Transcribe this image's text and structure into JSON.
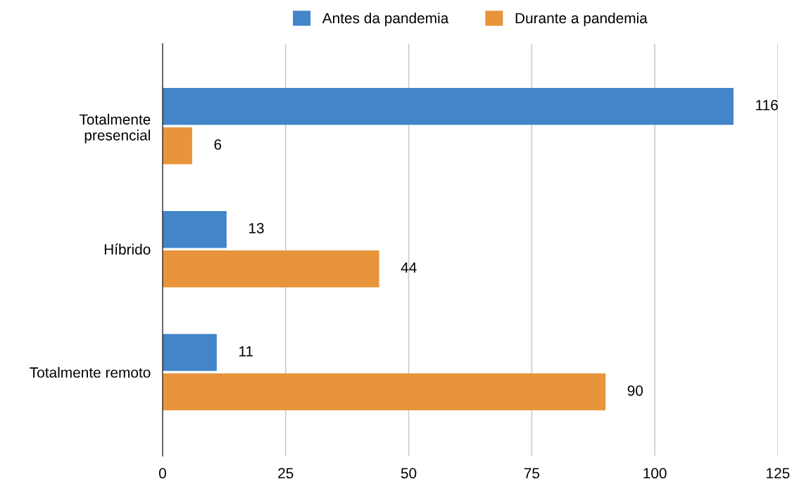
{
  "chart_data": {
    "type": "bar",
    "orientation": "horizontal",
    "categories": [
      "Totalmente\npresencial",
      "Híbrido",
      "Totalmente remoto"
    ],
    "series": [
      {
        "name": "Antes da pandemia",
        "color": "#4285c8",
        "values": [
          116,
          13,
          11
        ]
      },
      {
        "name": "Durante a pandemia",
        "color": "#e8943a",
        "values": [
          6,
          44,
          90
        ]
      }
    ],
    "xlim": [
      0,
      125
    ],
    "xticks": [
      0,
      25,
      50,
      75,
      100,
      125
    ],
    "grid": "x",
    "legend": "top",
    "data_labels": true
  }
}
